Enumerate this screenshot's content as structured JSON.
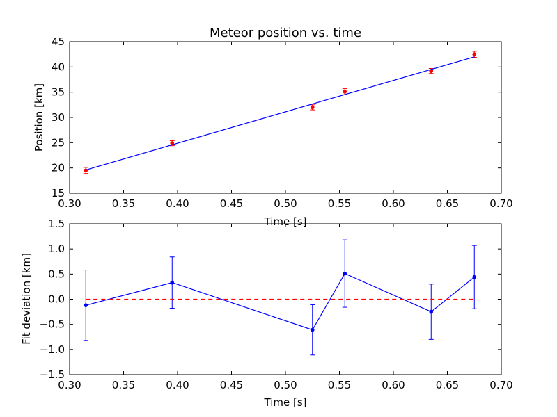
{
  "chart_data": [
    {
      "type": "scatter",
      "title": "Meteor position vs. time",
      "xlabel": "Time [s]",
      "ylabel": "Position [km]",
      "xlim": [
        0.3,
        0.7
      ],
      "ylim": [
        15,
        45
      ],
      "xticks": [
        "0.30",
        "0.35",
        "0.40",
        "0.45",
        "0.50",
        "0.55",
        "0.60",
        "0.65",
        "0.70"
      ],
      "yticks": [
        "15",
        "20",
        "25",
        "30",
        "35",
        "40",
        "45"
      ],
      "grid": false,
      "series": [
        {
          "kind": "errorbar",
          "color": "#ff0000",
          "x": [
            0.315,
            0.395,
            0.525,
            0.555,
            0.635,
            0.675
          ],
          "y": [
            19.5,
            24.9,
            32.0,
            35.1,
            39.2,
            42.5
          ],
          "yerr": [
            0.6,
            0.5,
            0.5,
            0.6,
            0.5,
            0.6
          ]
        },
        {
          "kind": "fit-line",
          "color": "#0000ff",
          "x": [
            0.315,
            0.675
          ],
          "y": [
            19.6,
            42.0
          ]
        }
      ]
    },
    {
      "type": "line",
      "title": "",
      "xlabel": "Time [s]",
      "ylabel": "Fit deviation [km]",
      "xlim": [
        0.3,
        0.7
      ],
      "ylim": [
        -1.5,
        1.5
      ],
      "xticks": [
        "0.30",
        "0.35",
        "0.40",
        "0.45",
        "0.50",
        "0.55",
        "0.60",
        "0.65",
        "0.70"
      ],
      "yticks": [
        "−1.5",
        "−1.0",
        "−0.5",
        "0.0",
        "0.5",
        "1.0",
        "1.5"
      ],
      "grid": false,
      "series": [
        {
          "kind": "errorbar-line",
          "color": "#0000ff",
          "x": [
            0.315,
            0.395,
            0.525,
            0.555,
            0.635,
            0.675
          ],
          "y": [
            -0.12,
            0.33,
            -0.61,
            0.51,
            -0.25,
            0.44
          ],
          "yerr": [
            0.7,
            0.51,
            0.5,
            0.67,
            0.55,
            0.63
          ]
        },
        {
          "kind": "reference-line",
          "color": "#ff0000",
          "dashed": true,
          "y": 0.0
        }
      ]
    }
  ]
}
